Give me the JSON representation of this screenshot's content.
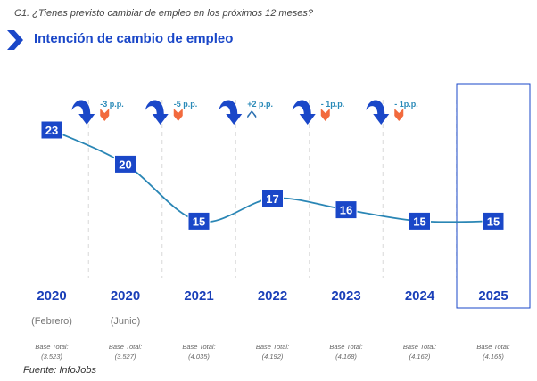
{
  "question": "C1. ¿Tienes previsto cambiar de empleo en los próximos 12 meses?",
  "title": "Intención de cambio de empleo",
  "source": "Fuente: InfoJobs",
  "colors": {
    "primary": "#1a47c8",
    "line": "#2a86b5",
    "down": "#f26a3d",
    "up": "#2a6fb0",
    "grid": "#d8d8d8"
  },
  "chart_data": {
    "type": "line",
    "categories": [
      "2020",
      "2020",
      "2021",
      "2022",
      "2023",
      "2024",
      "2025"
    ],
    "sublabels": [
      "(Febrero)",
      "(Junio)",
      "",
      "",
      "",
      "",
      ""
    ],
    "values": [
      23,
      20,
      15,
      17,
      16,
      15,
      15
    ],
    "bases": [
      "Base Total:\n(3.523)",
      "Base Total:\n(3.527)",
      "Base Total:\n(4.035)",
      "Base Total:\n(4.192)",
      "Base Total:\n(4.168)",
      "Base Total:\n(4.162)",
      "Base Total:\n(4.165)"
    ],
    "base_label": "Base Total:",
    "base_values": [
      "(3.523)",
      "(3.527)",
      "(4.035)",
      "(4.192)",
      "(4.168)",
      "(4.162)",
      "(4.165)"
    ],
    "changes": [
      {
        "label": "-3 p.p.",
        "direction": "down"
      },
      {
        "label": "-5 p.p.",
        "direction": "down"
      },
      {
        "label": "+2 p.p.",
        "direction": "up"
      },
      {
        "label": "- 1p.p.",
        "direction": "down"
      },
      {
        "label": "- 1p.p.",
        "direction": "down"
      }
    ],
    "highlight": "2025",
    "grid": false
  }
}
